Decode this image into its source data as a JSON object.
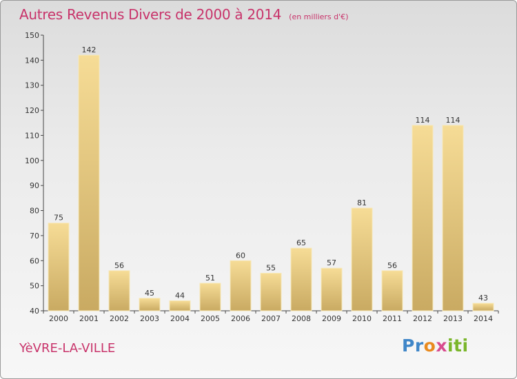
{
  "title": "Autres Revenus Divers de 2000 à 2014",
  "subtitle": "(en milliers d'€)",
  "city": "YèVRE-LA-VILLE",
  "logo": {
    "text": "Proxiti",
    "colors": [
      "#3f86c8",
      "#e98a1e",
      "#d84b8e",
      "#7ab62a"
    ]
  },
  "colors": {
    "title": "#c8336a",
    "bar_light": "#f6dc96",
    "bar_dark": "#c9aa62"
  },
  "chart_data": {
    "type": "bar",
    "categories": [
      "2000",
      "2001",
      "2002",
      "2003",
      "2004",
      "2005",
      "2006",
      "2007",
      "2008",
      "2009",
      "2010",
      "2011",
      "2012",
      "2013",
      "2014"
    ],
    "values": [
      75,
      142,
      56,
      45,
      44,
      51,
      60,
      55,
      65,
      57,
      81,
      56,
      114,
      114,
      43
    ],
    "ylim": [
      40,
      150
    ],
    "yticks": [
      40,
      50,
      60,
      70,
      80,
      90,
      100,
      110,
      120,
      130,
      140,
      150
    ],
    "grid": false,
    "legend": "none"
  }
}
